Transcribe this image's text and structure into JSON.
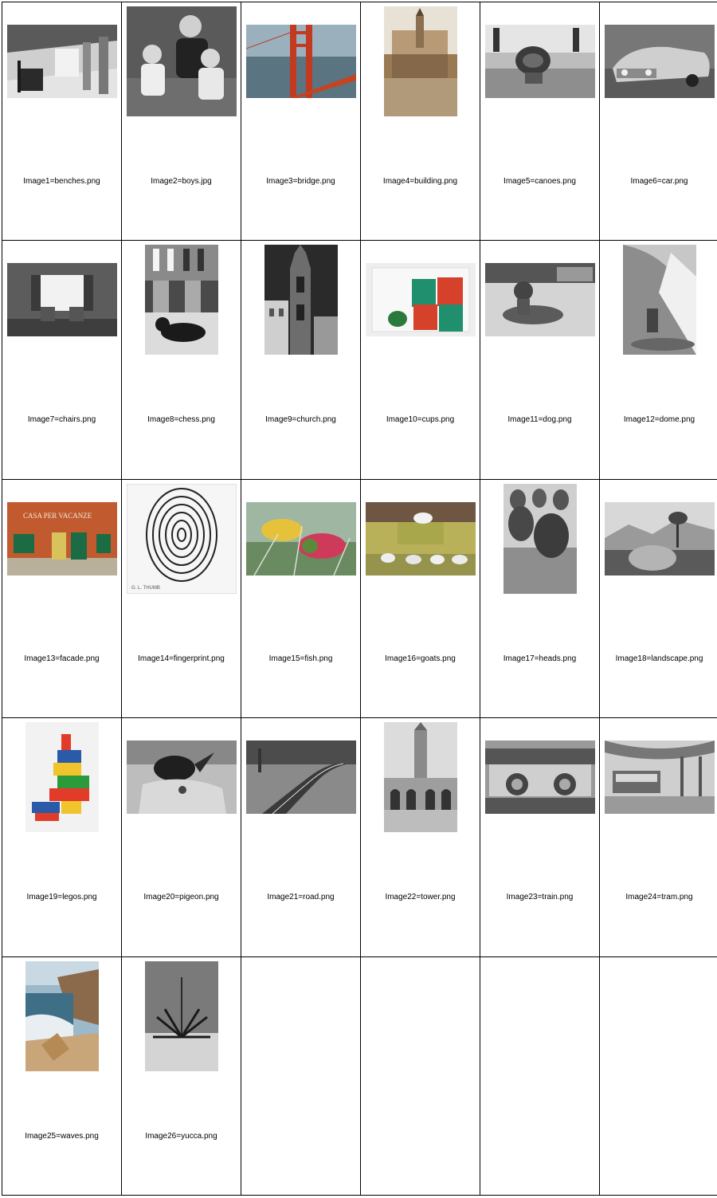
{
  "images": [
    {
      "caption": "Image1=benches.png",
      "shape": "landscape",
      "scene": "benches"
    },
    {
      "caption": "Image2=boys.jpg",
      "shape": "square",
      "scene": "boys"
    },
    {
      "caption": "Image3=bridge.png",
      "shape": "landscape",
      "scene": "bridge"
    },
    {
      "caption": "Image4=building.png",
      "shape": "portrait",
      "scene": "building"
    },
    {
      "caption": "Image5=canoes.png",
      "shape": "landscape",
      "scene": "canoes"
    },
    {
      "caption": "Image6=car.png",
      "shape": "landscape",
      "scene": "car"
    },
    {
      "caption": "Image7=chairs.png",
      "shape": "landscape",
      "scene": "chairs"
    },
    {
      "caption": "Image8=chess.png",
      "shape": "portrait",
      "scene": "chess"
    },
    {
      "caption": "Image9=church.png",
      "shape": "portrait",
      "scene": "church"
    },
    {
      "caption": "Image10=cups.png",
      "shape": "landscape",
      "scene": "cups"
    },
    {
      "caption": "Image11=dog.png",
      "shape": "landscape",
      "scene": "dog"
    },
    {
      "caption": "Image12=dome.png",
      "shape": "portrait",
      "scene": "dome"
    },
    {
      "caption": "Image13=facade.png",
      "shape": "landscape",
      "scene": "facade",
      "sign": "CASA PER VACANZE"
    },
    {
      "caption": "Image14=fingerprint.png",
      "shape": "square",
      "scene": "fingerprint",
      "sign": "G. L. THUMB"
    },
    {
      "caption": "Image15=fish.png",
      "shape": "landscape",
      "scene": "fish"
    },
    {
      "caption": "Image16=goats.png",
      "shape": "landscape",
      "scene": "goats"
    },
    {
      "caption": "Image17=heads.png",
      "shape": "portrait",
      "scene": "heads"
    },
    {
      "caption": "Image18=landscape.png",
      "shape": "landscape",
      "scene": "landscape"
    },
    {
      "caption": "Image19=legos.png",
      "shape": "portrait",
      "scene": "legos"
    },
    {
      "caption": "Image20=pigeon.png",
      "shape": "landscape",
      "scene": "pigeon"
    },
    {
      "caption": "Image21=road.png",
      "shape": "landscape",
      "scene": "road"
    },
    {
      "caption": "Image22=tower.png",
      "shape": "portrait",
      "scene": "tower"
    },
    {
      "caption": "Image23=train.png",
      "shape": "landscape",
      "scene": "train"
    },
    {
      "caption": "Image24=tram.png",
      "shape": "landscape",
      "scene": "tram"
    },
    {
      "caption": "Image25=waves.png",
      "shape": "portrait",
      "scene": "waves"
    },
    {
      "caption": "Image26=yucca.png",
      "shape": "portrait",
      "scene": "yucca"
    }
  ]
}
